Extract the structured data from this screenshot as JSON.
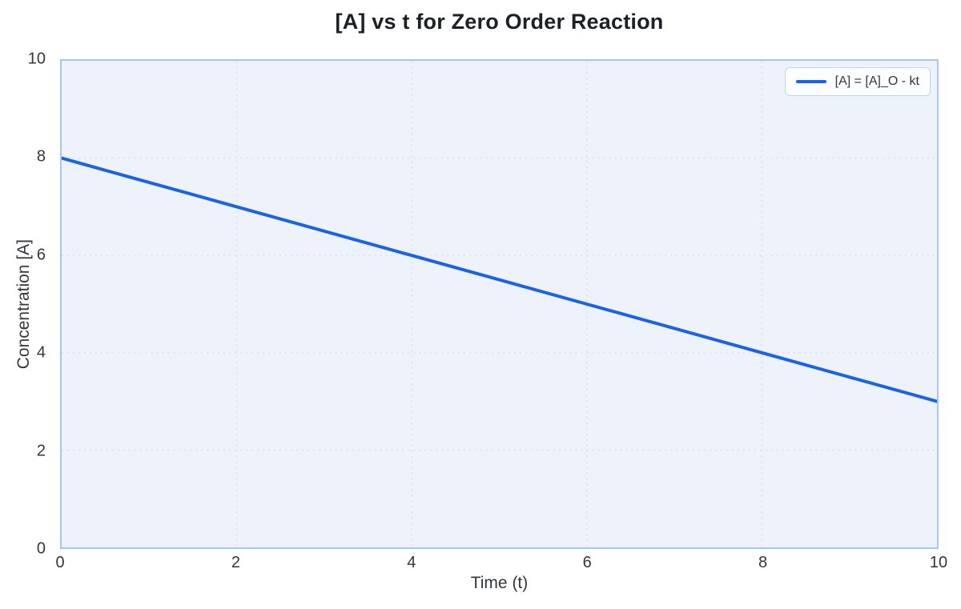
{
  "figure": {
    "background": "#ffffff",
    "plot_background": "#eef3fb",
    "plot_border_color": "#a9c6ee",
    "grid_color": "#dce3f2",
    "text_color": "#33363d",
    "title_color": "#1c2128"
  },
  "legend": {
    "entries": [
      {
        "label": "[A] = [A]_O - kt",
        "color": "#1a63e6"
      }
    ],
    "position": "upper right"
  },
  "chart_data": {
    "type": "line",
    "title": "[A] vs t for Zero Order Reaction",
    "xlabel": "Time (t)",
    "ylabel": "Concentration [A]",
    "xlim": [
      0,
      10
    ],
    "ylim": [
      0,
      10
    ],
    "xticks": [
      0,
      2,
      4,
      6,
      8,
      10
    ],
    "yticks": [
      0,
      2,
      4,
      6,
      8,
      10
    ],
    "grid": "dotted",
    "legend_position": "upper right",
    "series": [
      {
        "name": "[A] = [A]_O - kt",
        "x": [
          0,
          2,
          4,
          6,
          8,
          10
        ],
        "y": [
          8,
          7,
          6,
          5,
          4,
          3
        ],
        "color": "#1a63e6",
        "line_width": 4
      }
    ]
  }
}
